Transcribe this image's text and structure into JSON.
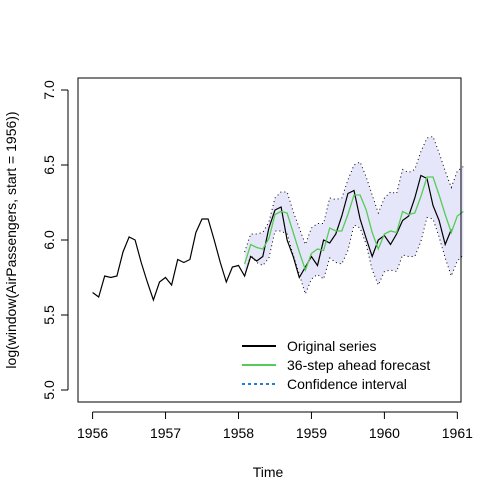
{
  "chart_data": {
    "type": "line",
    "title": "",
    "xlabel": "Time",
    "ylabel": "log(window(AirPassengers, start = 1956))",
    "xlim": [
      1955.8,
      1961.05
    ],
    "ylim": [
      4.92,
      7.08
    ],
    "x_ticks": [
      1956,
      1957,
      1958,
      1959,
      1960,
      1961
    ],
    "y_ticks": [
      5.0,
      5.5,
      6.0,
      6.5,
      7.0
    ],
    "x_tick_labels": [
      "1956",
      "1957",
      "1958",
      "1959",
      "1960",
      "1961"
    ],
    "y_tick_labels": [
      "5.0",
      "5.5",
      "6.0",
      "6.5",
      "7.0"
    ],
    "legend_position": "bottom-right",
    "colors": {
      "original": "#000000",
      "forecast": "#55cc55",
      "interval_line": "#000000",
      "interval_fill": "#e6e6fa",
      "legend_interval": "#1e7ed8"
    },
    "original_series": {
      "name": "Original series",
      "x_start": 1956.0,
      "step": 0.08333333,
      "values": [
        5.65,
        5.62,
        5.76,
        5.75,
        5.76,
        5.92,
        6.02,
        6.0,
        5.85,
        5.72,
        5.6,
        5.72,
        5.75,
        5.7,
        5.87,
        5.85,
        5.87,
        6.05,
        6.14,
        6.14,
        6.0,
        5.85,
        5.72,
        5.82,
        5.83,
        5.76,
        5.89,
        5.86,
        5.89,
        6.08,
        6.2,
        6.22,
        6.0,
        5.89,
        5.75,
        5.82,
        5.89,
        5.83,
        6.0,
        5.98,
        6.04,
        6.16,
        6.31,
        6.33,
        6.14,
        6.01,
        5.89,
        6.0,
        6.03,
        5.97,
        6.04,
        6.13,
        6.16,
        6.28,
        6.43,
        6.41,
        6.23,
        6.13,
        5.97,
        6.07
      ]
    },
    "forecast": {
      "name": "36-step ahead forecast",
      "x_start": 1958.0833,
      "step": 0.08333333,
      "values": [
        5.84,
        5.97,
        5.95,
        5.94,
        6.01,
        6.17,
        6.19,
        6.18,
        6.05,
        5.92,
        5.8,
        5.91,
        5.94,
        5.93,
        6.08,
        6.06,
        6.06,
        6.17,
        6.3,
        6.3,
        6.2,
        6.05,
        5.94,
        6.04,
        6.06,
        6.05,
        6.19,
        6.17,
        6.18,
        6.29,
        6.42,
        6.42,
        6.3,
        6.17,
        6.05,
        6.16,
        6.19
      ]
    },
    "interval": {
      "name": "Confidence interval",
      "x_start": 1958.0833,
      "step": 0.08333333,
      "upper": [
        5.92,
        6.04,
        6.04,
        6.05,
        6.12,
        6.28,
        6.32,
        6.32,
        6.19,
        6.08,
        5.97,
        6.08,
        6.11,
        6.11,
        6.28,
        6.27,
        6.28,
        6.4,
        6.5,
        6.52,
        6.42,
        6.3,
        6.18,
        6.28,
        6.32,
        6.31,
        6.47,
        6.45,
        6.47,
        6.59,
        6.68,
        6.69,
        6.58,
        6.46,
        6.35,
        6.46,
        6.49
      ],
      "lower": [
        5.76,
        5.9,
        5.85,
        5.83,
        5.88,
        6.06,
        6.06,
        6.04,
        5.9,
        5.77,
        5.64,
        5.74,
        5.77,
        5.74,
        5.88,
        5.85,
        5.84,
        5.93,
        6.1,
        6.08,
        5.97,
        5.8,
        5.7,
        5.79,
        5.8,
        5.79,
        5.9,
        5.89,
        5.89,
        5.99,
        6.15,
        6.14,
        6.02,
        5.88,
        5.76,
        5.86,
        5.9
      ]
    }
  }
}
